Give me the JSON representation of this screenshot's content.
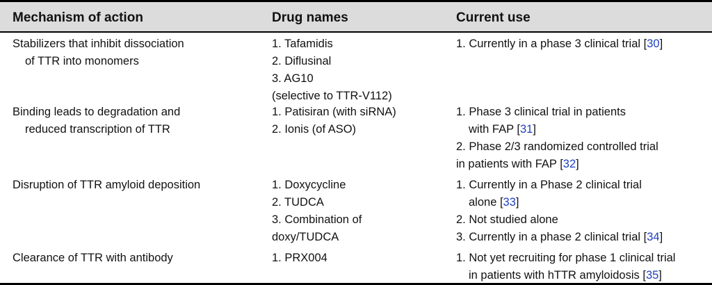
{
  "table": {
    "headers": {
      "mechanism": "Mechanism of action",
      "drugs": "Drug names",
      "use": "Current use"
    },
    "rows": [
      {
        "mechanism": [
          "Stabilizers that inhibit dissociation",
          "of TTR into monomers"
        ],
        "drugs": [
          "1. Tafamidis",
          "2. Diflusinal",
          "3. AG10",
          "(selective to TTR-V112)"
        ],
        "use_1_text": "1. Currently in a phase 3 clinical trial [",
        "use_1_ref": "30",
        "use_1_end": "]"
      },
      {
        "mechanism": [
          "Binding leads to degradation and",
          "reduced transcription of TTR"
        ],
        "drugs": [
          "1. Patisiran (with siRNA)",
          "2. Ionis (of ASO)"
        ],
        "use": [
          "1. Phase 3 clinical trial in patients",
          "with FAP [",
          "31",
          "]",
          "2. Phase 2/3 randomized controlled trial",
          "in patients with FAP [",
          "32",
          "]"
        ]
      },
      {
        "mechanism": [
          "Disruption of TTR amyloid deposition"
        ],
        "drugs": [
          "1. Doxycycline",
          "2. TUDCA",
          "3. Combination of",
          "doxy/TUDCA"
        ],
        "use": [
          "1. Currently in a Phase 2 clinical trial",
          "alone [",
          "33",
          "]",
          "2. Not studied alone",
          "3. Currently in a phase 2 clinical trial [",
          "34",
          "]"
        ]
      },
      {
        "mechanism": [
          "Clearance of TTR with antibody"
        ],
        "drugs": [
          "1. PRX004"
        ],
        "use": [
          "1. Not yet recruiting for phase 1 clinical trial",
          "in patients with hTTR amyloidosis [",
          "35",
          "]"
        ]
      }
    ]
  },
  "colors": {
    "header_bg": "#dcdcdc",
    "ref_link": "#1f3fbf",
    "text": "#111111"
  }
}
